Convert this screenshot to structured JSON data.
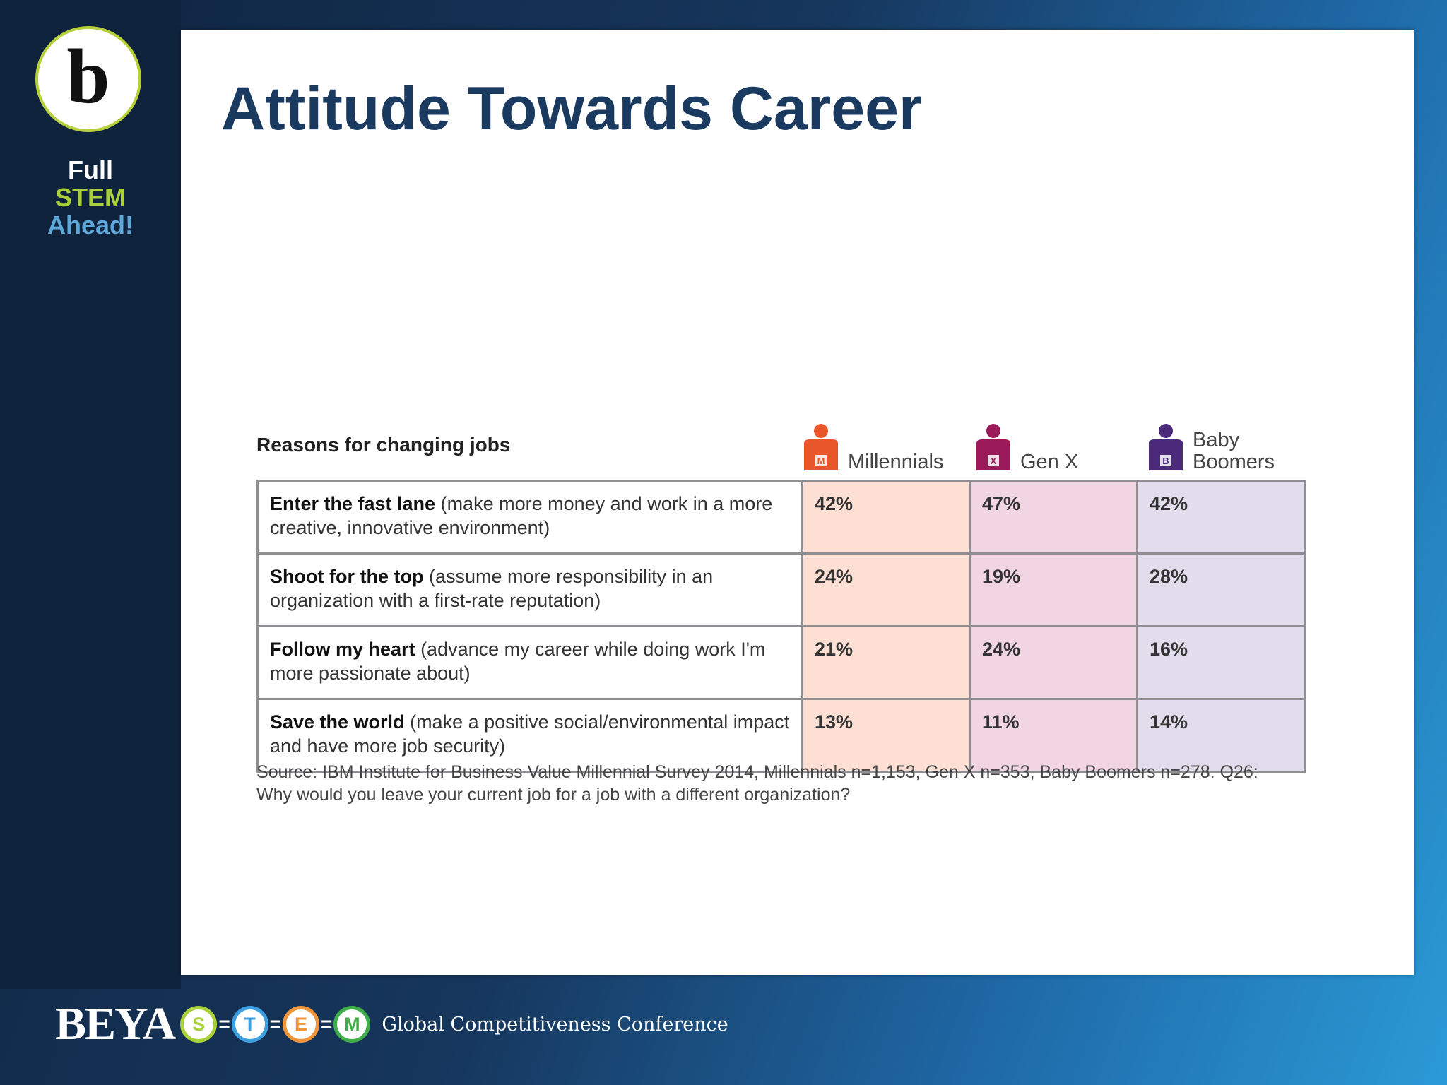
{
  "sidebar": {
    "logo_letter": "b",
    "tagline": [
      "Full",
      "STEM",
      "Ahead!"
    ]
  },
  "title": "Attitude Towards Career",
  "table": {
    "caption": "Reasons for changing jobs",
    "columns": [
      {
        "label": "Millennials",
        "icon": "M"
      },
      {
        "label": "Gen X",
        "icon": "X"
      },
      {
        "label": "Baby Boomers",
        "icon": "B"
      }
    ],
    "rows": [
      {
        "lead": "Enter the fast lane",
        "detail": "(make more money and work in a more creative, innovative environment)",
        "values": [
          "42%",
          "47%",
          "42%"
        ]
      },
      {
        "lead": "Shoot for the top",
        "detail": "(assume more responsibility in an organization with a first-rate reputation)",
        "values": [
          "24%",
          "19%",
          "28%"
        ]
      },
      {
        "lead": "Follow my heart",
        "detail": "(advance my career while doing work I'm more passionate about)",
        "values": [
          "21%",
          "24%",
          "16%"
        ]
      },
      {
        "lead": "Save the world",
        "detail": "(make a positive social/environmental impact and have more job security)",
        "values": [
          "13%",
          "11%",
          "14%"
        ]
      }
    ]
  },
  "source": "Source: IBM Institute for Business Value Millennial Survey 2014, Millennials n=1,153, Gen X n=353, Baby Boomers n=278. Q26: Why would you leave your current job for a job with a different organization?",
  "footer": {
    "brand": "BEYA",
    "letters": [
      "S",
      "T",
      "E",
      "M"
    ],
    "conference": "Global Competitiveness Conference"
  }
}
